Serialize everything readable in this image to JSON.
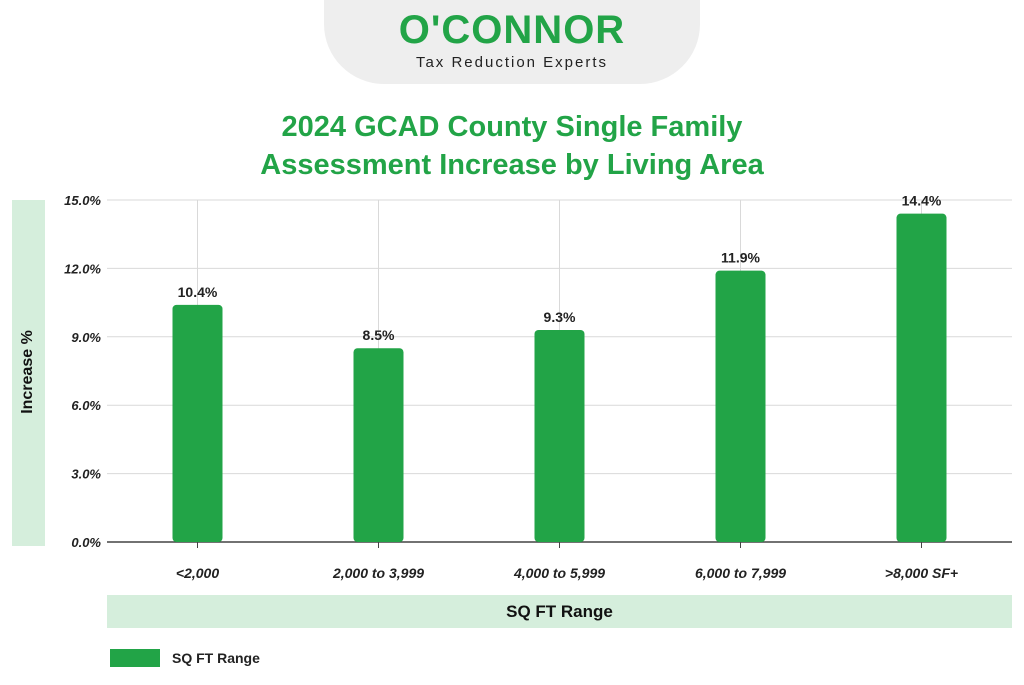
{
  "logo": {
    "wordmark": "O'CONNOR",
    "tagline": "Tax Reduction Experts",
    "brand_color": "#22a447"
  },
  "chart_data": {
    "type": "bar",
    "title_lines": [
      "2024 GCAD County Single Family",
      "Assessment Increase by Living Area"
    ],
    "xlabel": "SQ FT Range",
    "ylabel": "Increase %",
    "categories": [
      "<2,000",
      "2,000 to 3,999",
      "4,000 to 5,999",
      "6,000 to 7,999",
      ">8,000 SF+"
    ],
    "series": [
      {
        "name": "SQ FT Range",
        "values": [
          10.4,
          8.5,
          9.3,
          11.9,
          14.4
        ],
        "color": "#22a447"
      }
    ],
    "data_labels": [
      "10.4%",
      "8.5%",
      "9.3%",
      "11.9%",
      "14.4%"
    ],
    "ylim": [
      0,
      15
    ],
    "yticks": [
      "0.0%",
      "3.0%",
      "6.0%",
      "9.0%",
      "12.0%",
      "15.0%"
    ],
    "grid": true,
    "legend_position": "bottom-left",
    "colors": {
      "bar": "#22a447",
      "title": "#22a447",
      "label_band": "#d5eedc",
      "grid": "#d9d9d9"
    }
  }
}
